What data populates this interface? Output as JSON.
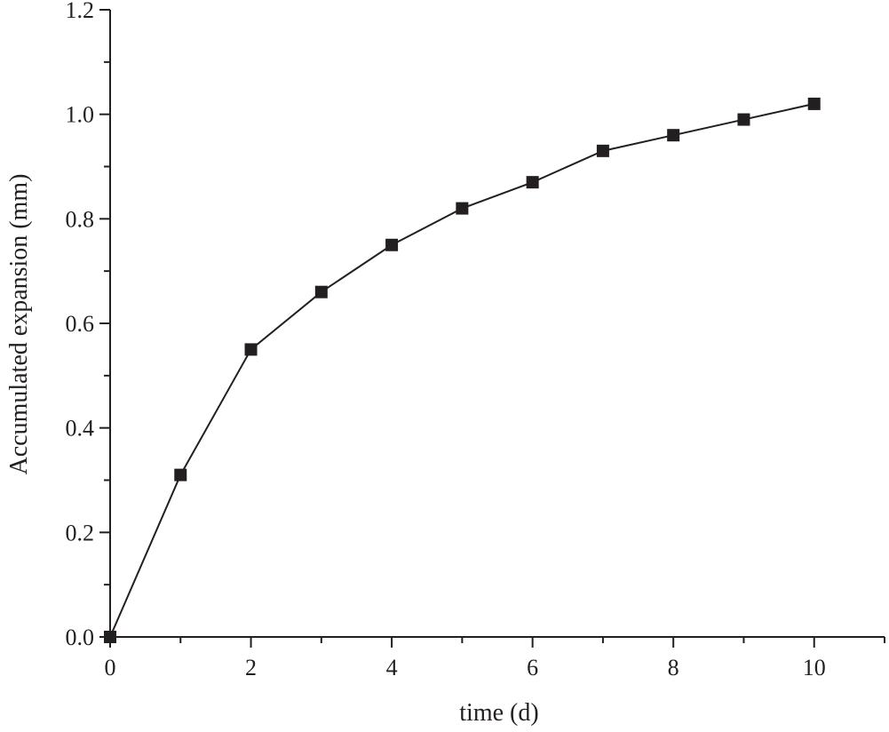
{
  "chart_data": {
    "type": "line",
    "title": "",
    "xlabel": "time (d)",
    "ylabel": "Accumulated expansion (mm)",
    "xlim": [
      0,
      11
    ],
    "ylim": [
      0,
      1.2
    ],
    "x_ticks": [
      0,
      2,
      4,
      6,
      8,
      10
    ],
    "x_tick_labels": [
      "0",
      "2",
      "4",
      "6",
      "8",
      "10"
    ],
    "y_ticks": [
      0,
      0.2,
      0.4,
      0.6,
      0.8,
      1.0,
      1.2
    ],
    "y_tick_labels": [
      "0.0",
      "0.2",
      "0.4",
      "0.6",
      "0.8",
      "1.0",
      "1.2"
    ],
    "grid": false,
    "legend": "none",
    "marker": "square",
    "colors": {
      "line": "#231f20",
      "marker": "#231f20"
    },
    "series": [
      {
        "x": [
          0,
          1,
          2,
          3,
          4,
          5,
          6,
          7,
          8,
          9,
          10
        ],
        "y": [
          0.0,
          0.31,
          0.55,
          0.66,
          0.75,
          0.82,
          0.87,
          0.93,
          0.96,
          0.99,
          1.02
        ]
      }
    ]
  }
}
